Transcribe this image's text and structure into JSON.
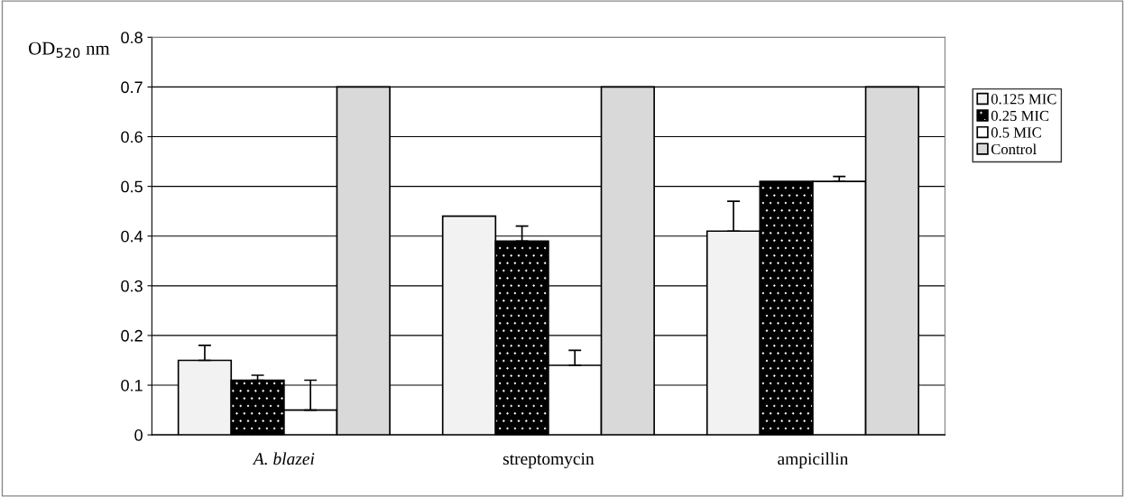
{
  "chart_data": {
    "type": "bar",
    "ylabel": "OD$_{520}$ nm",
    "categories": [
      "A. blazei",
      "streptomycin",
      "ampicillin"
    ],
    "series": [
      {
        "name": "0.125 MIC",
        "color": "#f2f2f2",
        "values": [
          0.15,
          0.44,
          0.41
        ],
        "errors": [
          [
            0.15,
            0.18
          ],
          null,
          [
            0.41,
            0.47
          ]
        ]
      },
      {
        "name": "0.25 MIC",
        "color": "#000000",
        "values": [
          0.11,
          0.39,
          0.51
        ],
        "errors": [
          [
            0.11,
            0.12
          ],
          [
            0.39,
            0.42
          ],
          null
        ]
      },
      {
        "name": "0.5 MIC",
        "color": "#ffffff",
        "values": [
          0.05,
          0.14,
          0.51
        ],
        "errors": [
          [
            0.05,
            0.11
          ],
          [
            0.14,
            0.17
          ],
          [
            0.51,
            0.52
          ]
        ]
      },
      {
        "name": "Control",
        "color": "#d9d9d9",
        "values": [
          0.7,
          0.7,
          0.7
        ]
      }
    ],
    "ylim": [
      0,
      0.8
    ],
    "yticks": [
      0,
      0.1,
      0.2,
      0.3,
      0.4,
      0.5,
      0.6,
      0.7,
      0.8
    ],
    "grid": "y",
    "legend": "right"
  }
}
